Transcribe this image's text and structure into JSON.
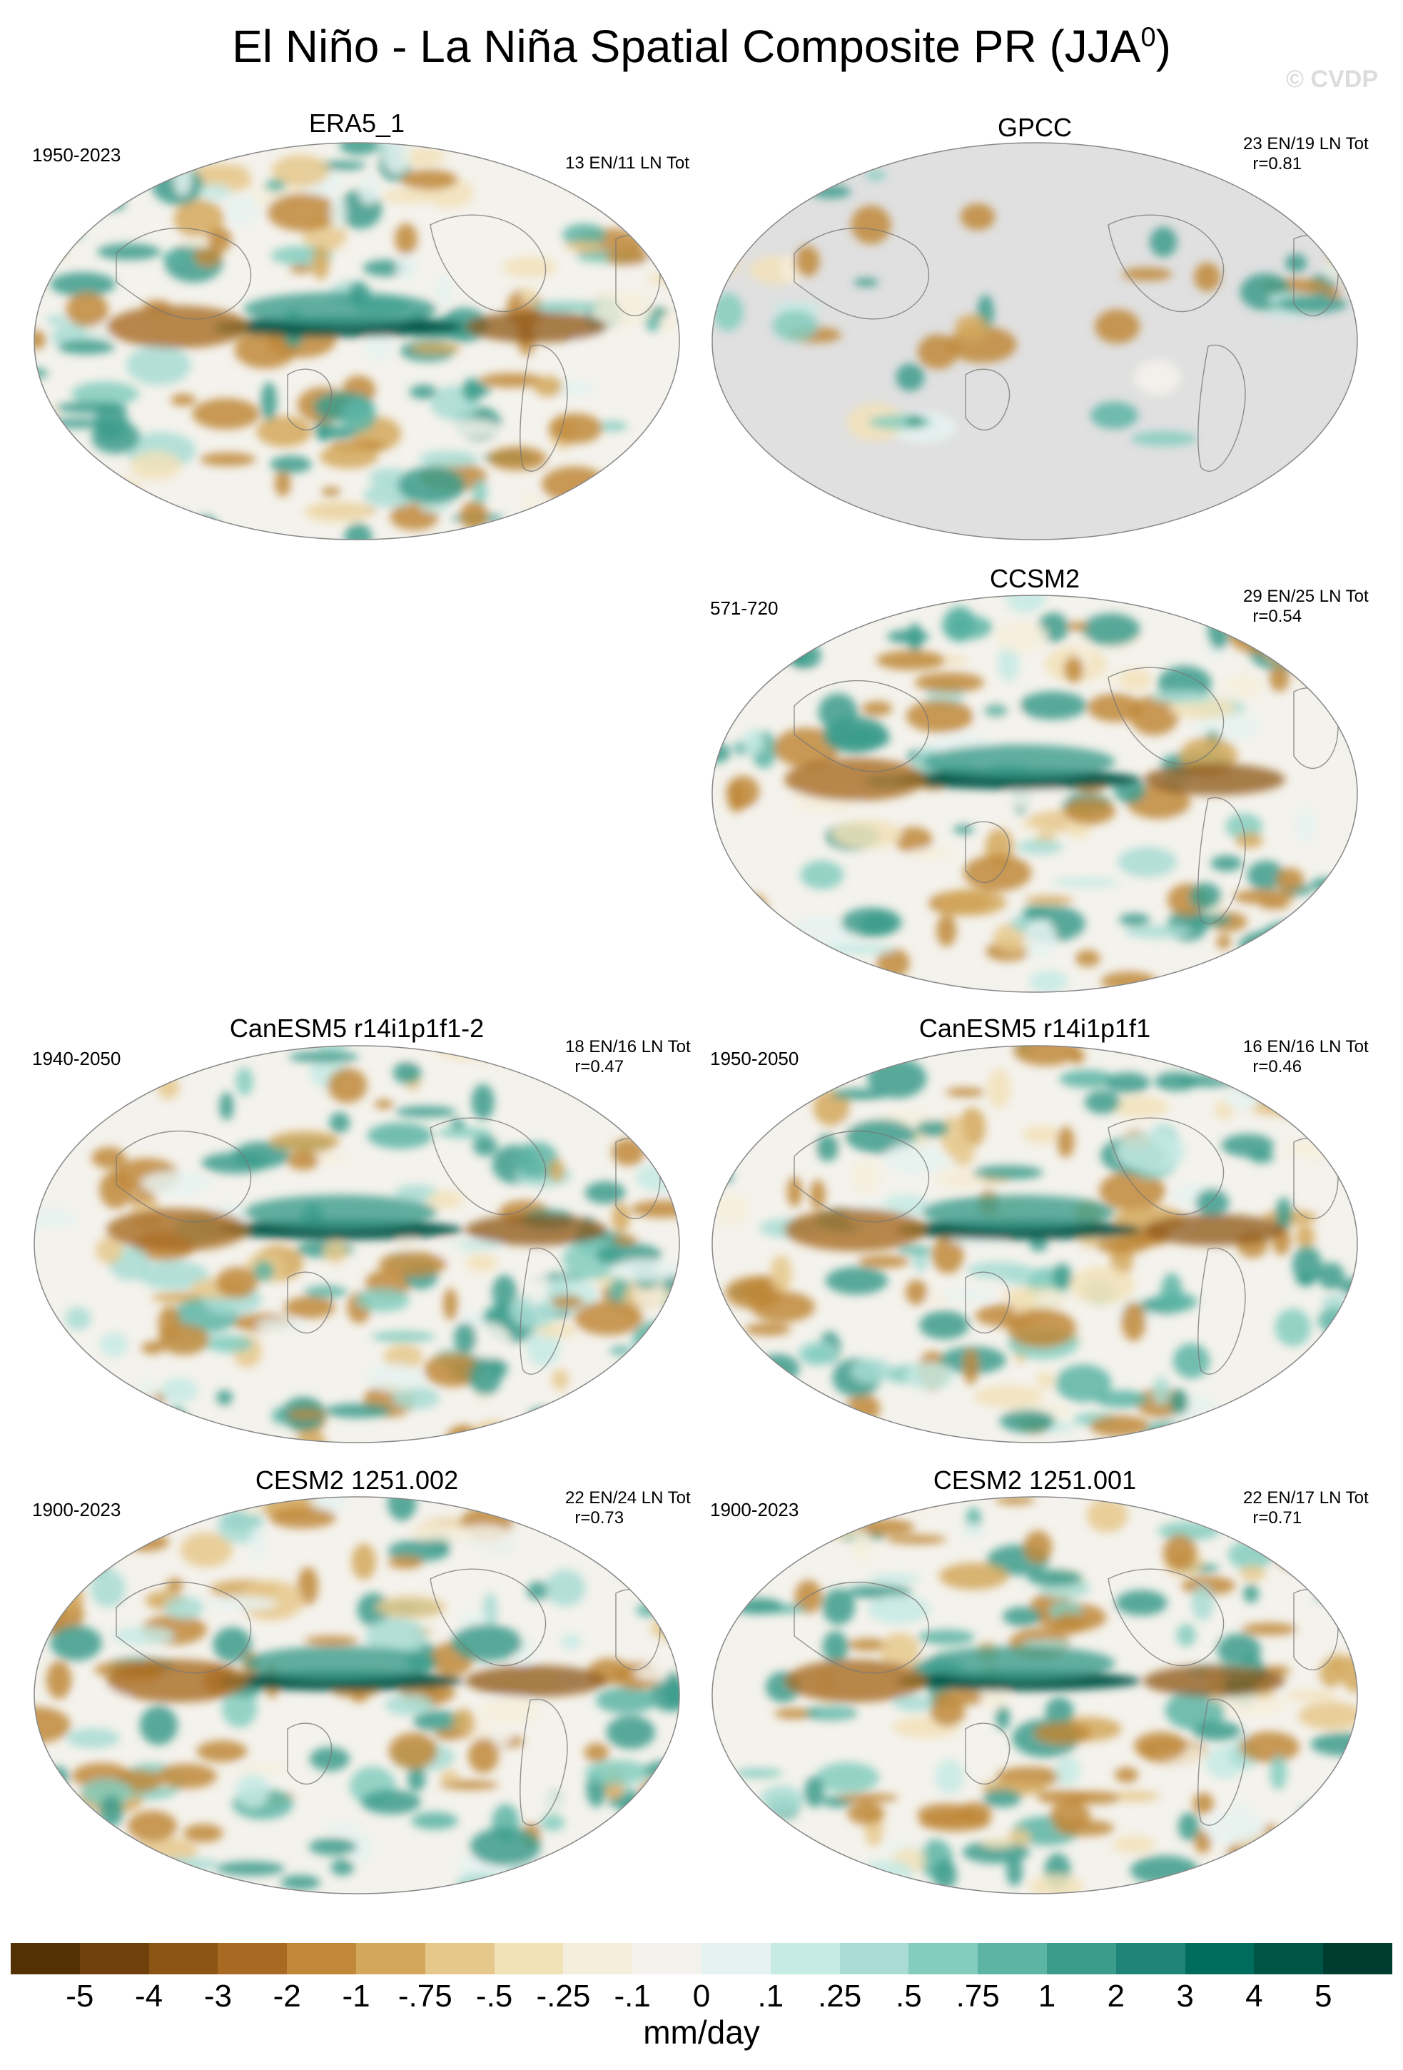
{
  "title": "El Niño - La Niña Spatial Composite PR (JJA",
  "title_superscript": "0",
  "title_close": ")",
  "watermark": "© CVDP",
  "panels": [
    {
      "name": "ERA5_1",
      "period": "1950-2023",
      "stats": "13 EN/11 LN Tot",
      "land_only": false
    },
    {
      "name": "GPCC",
      "period": "",
      "stats": "23 EN/19 LN Tot\n  r=0.81",
      "land_only": true
    },
    {
      "name": "CCSM2",
      "period": "571-720",
      "stats": "29 EN/25 LN Tot\n  r=0.54",
      "land_only": false
    },
    {
      "name": "CanESM5 r14i1p1f1-2",
      "period": "1940-2050",
      "stats": "18 EN/16 LN Tot\n  r=0.47",
      "land_only": false
    },
    {
      "name": "CanESM5 r14i1p1f1",
      "period": "1950-2050",
      "stats": "16 EN/16 LN Tot\n  r=0.46",
      "land_only": false
    },
    {
      "name": "CESM2 1251.002",
      "period": "1900-2023",
      "stats": "22 EN/24 LN Tot\n  r=0.73",
      "land_only": false
    },
    {
      "name": "CESM2 1251.001",
      "period": "1900-2023",
      "stats": "22 EN/17 LN Tot\n  r=0.71",
      "land_only": false
    }
  ],
  "colorbar": {
    "colors": [
      "#543005",
      "#70400c",
      "#8c5414",
      "#a86a22",
      "#c08838",
      "#d4a85c",
      "#e6c88c",
      "#f2e2b8",
      "#f6eedc",
      "#f4f2ec",
      "#e6f2f0",
      "#c6eae4",
      "#a8dcd4",
      "#84ccbe",
      "#5cb4a4",
      "#3c9c8c",
      "#208478",
      "#006c5e",
      "#005446",
      "#003c30"
    ],
    "labels": [
      "-5",
      "-4",
      "-3",
      "-2",
      "-1",
      "-.75",
      "-.5",
      "-.25",
      "-.1",
      "0",
      ".1",
      ".25",
      ".5",
      ".75",
      "1",
      "2",
      "3",
      "4",
      "5"
    ],
    "units": "mm/day"
  }
}
